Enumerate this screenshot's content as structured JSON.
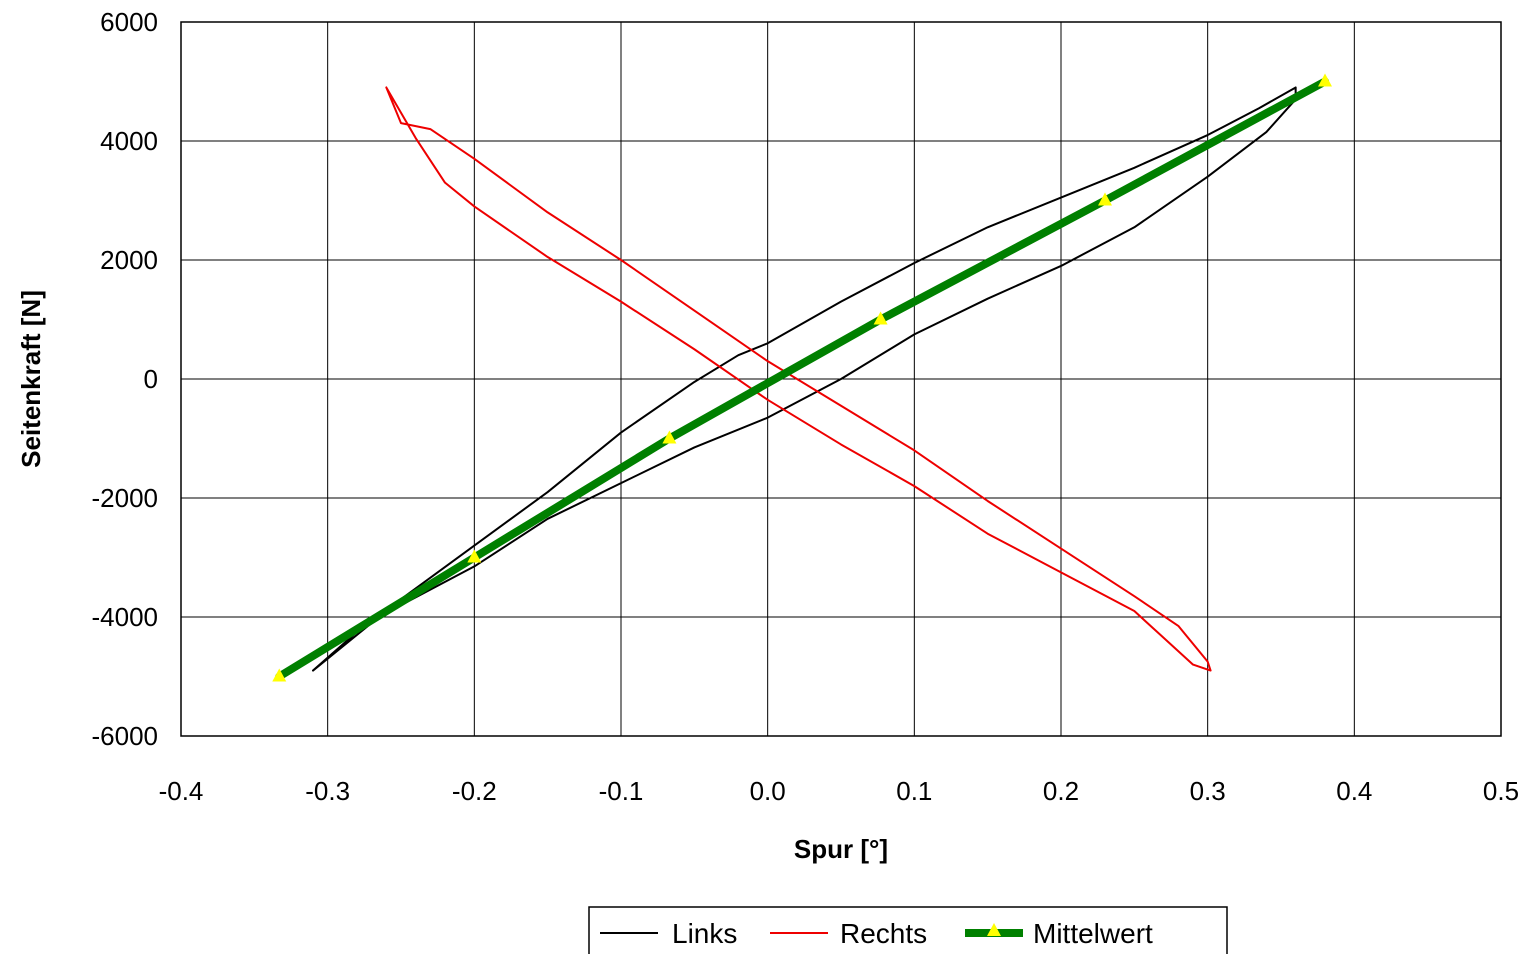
{
  "chart_data": {
    "type": "line",
    "xlabel": "Spur [°]",
    "ylabel": "Seitenkraft [N]",
    "xlim": [
      -0.4,
      0.5
    ],
    "ylim": [
      -6000,
      6000
    ],
    "x_ticks": [
      -0.4,
      -0.3,
      -0.2,
      -0.1,
      0.0,
      0.1,
      0.2,
      0.3,
      0.4,
      0.5
    ],
    "x_tick_labels": [
      "-0.4",
      "-0.3",
      "-0.2",
      "-0.1",
      "0.0",
      "0.1",
      "0.2",
      "0.3",
      "0.4",
      "0.5"
    ],
    "y_ticks": [
      -6000,
      -4000,
      -2000,
      0,
      2000,
      4000,
      6000
    ],
    "y_tick_labels": [
      "-6000",
      "-4000",
      "-2000",
      "0",
      "2000",
      "4000",
      "6000"
    ],
    "grid": true,
    "legend_position": "bottom-center",
    "series": [
      {
        "name": "Links",
        "color": "#000000",
        "x": [
          -0.31,
          -0.28,
          -0.25,
          -0.2,
          -0.15,
          -0.1,
          -0.05,
          -0.02,
          0.0,
          0.05,
          0.1,
          0.15,
          0.2,
          0.25,
          0.3,
          0.335,
          0.36,
          0.36,
          0.34,
          0.3,
          0.25,
          0.2,
          0.15,
          0.1,
          0.05,
          0.0,
          -0.05,
          -0.1,
          -0.15,
          -0.2,
          -0.25,
          -0.28,
          -0.31
        ],
        "y": [
          -4900,
          -4300,
          -3700,
          -2800,
          -1900,
          -900,
          -50,
          400,
          600,
          1300,
          1950,
          2550,
          3050,
          3550,
          4100,
          4550,
          4900,
          4700,
          4150,
          3400,
          2550,
          1900,
          1350,
          750,
          0,
          -650,
          -1150,
          -1750,
          -2350,
          -3150,
          -3800,
          -4250,
          -4900
        ]
      },
      {
        "name": "Rechts",
        "color": "#ee0000",
        "x": [
          -0.26,
          -0.25,
          -0.23,
          -0.2,
          -0.15,
          -0.1,
          -0.05,
          0.0,
          0.05,
          0.1,
          0.15,
          0.2,
          0.25,
          0.28,
          0.3,
          0.302,
          0.29,
          0.25,
          0.2,
          0.15,
          0.1,
          0.05,
          0.0,
          -0.05,
          -0.1,
          -0.15,
          -0.2,
          -0.22,
          -0.24,
          -0.26
        ],
        "y": [
          4900,
          4300,
          4200,
          3700,
          2800,
          2000,
          1150,
          300,
          -450,
          -1200,
          -2050,
          -2850,
          -3650,
          -4150,
          -4750,
          -4900,
          -4800,
          -3900,
          -3250,
          -2600,
          -1800,
          -1100,
          -350,
          500,
          1300,
          2050,
          2900,
          3300,
          4050,
          4900
        ]
      },
      {
        "name": "Mittelwert",
        "color": "#008000",
        "marker_color": "#ffff00",
        "x": [
          -0.333,
          -0.2,
          -0.067,
          0.077,
          0.23,
          0.38
        ],
        "y": [
          -5000,
          -3000,
          -1000,
          1000,
          3000,
          5000
        ]
      }
    ]
  }
}
